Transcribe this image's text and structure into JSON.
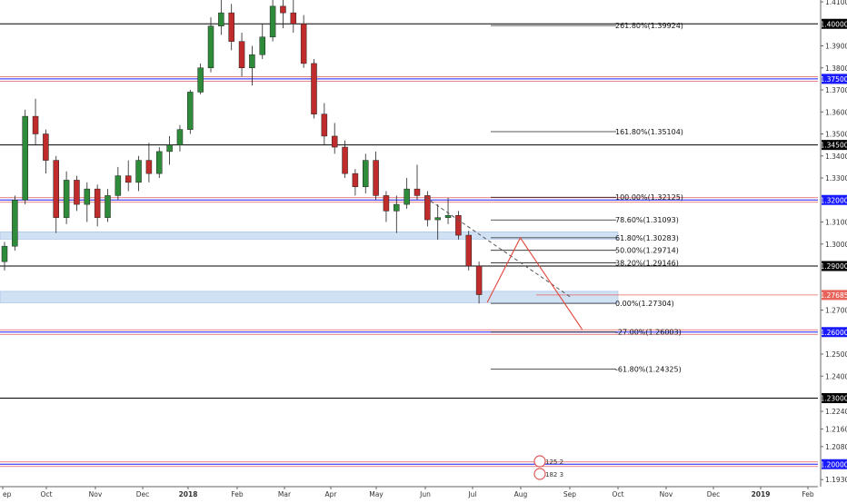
{
  "chart_data": {
    "type": "candlestick",
    "x_tick_labels": [
      "ep",
      "Oct",
      "Nov",
      "Dec",
      "2018",
      "Feb",
      "Mar",
      "Apr",
      "May",
      "Jun",
      "Jul",
      "Aug",
      "Sep",
      "Oct",
      "Nov",
      "Dec",
      "2019",
      "Feb"
    ],
    "y_tick_labels": [
      "1.41000",
      "1.39000",
      "1.38000",
      "1.37000",
      "1.36000",
      "1.35000",
      "1.34000",
      "1.33000",
      "1.32000",
      "1.31000",
      "1.30000",
      "1.29000",
      "1.28000",
      "1.27000",
      "1.26000",
      "1.25000",
      "1.24000",
      "1.23000",
      "1.22400",
      "1.21600",
      "1.20800",
      "1.20000",
      "1.19300"
    ],
    "ylim": [
      1.19,
      1.412
    ],
    "grid": false,
    "horizontal_levels": [
      {
        "label": "1.40000",
        "value": 1.4,
        "color": "#000000"
      },
      {
        "label": "1.37500",
        "value": 1.375,
        "color": "#1a1aff"
      },
      {
        "label": "1.34500",
        "value": 1.345,
        "color": "#000000"
      },
      {
        "label": "1.32000",
        "value": 1.32,
        "color": "#1a1aff"
      },
      {
        "label": "1.29000",
        "value": 1.29,
        "color": "#000000"
      },
      {
        "label": "1.26000",
        "value": 1.26,
        "color": "#1a1aff"
      },
      {
        "label": "1.23000",
        "value": 1.23,
        "color": "#000000"
      },
      {
        "label": "1.20000",
        "value": 1.2,
        "color": "#1a1aff"
      }
    ],
    "current_price": {
      "label": "1.27685",
      "value": 1.27685,
      "color": "#e8645a"
    },
    "fibonacci_levels": [
      {
        "label": "261.80%(1.39924)",
        "value": 1.39924
      },
      {
        "label": "161.80%(1.35104)",
        "value": 1.35104
      },
      {
        "label": "100.00%(1.32125)",
        "value": 1.32125
      },
      {
        "label": "78.60%(1.31093)",
        "value": 1.31093
      },
      {
        "label": "61.80%(1.30283)",
        "value": 1.30283
      },
      {
        "label": "50.00%(1.29714)",
        "value": 1.29714
      },
      {
        "label": "38.20%(1.29146)",
        "value": 1.29146
      },
      {
        "label": "0.00%(1.27304)",
        "value": 1.27304
      },
      {
        "label": "-27.00%(1.26003)",
        "value": 1.26003
      },
      {
        "label": "-61.80%(1.24325)",
        "value": 1.24325
      }
    ],
    "zones": [
      {
        "from": 1.3022,
        "to": 1.3055,
        "color": "#c9dcf2"
      },
      {
        "from": 1.2733,
        "to": 1.2785,
        "color": "#c9dcf2"
      }
    ],
    "projection_path": [
      {
        "week": 46.8,
        "price": 1.2735
      },
      {
        "week": 50.0,
        "price": 1.3028
      },
      {
        "week": 56.0,
        "price": 1.2612
      }
    ],
    "trend_line": [
      {
        "week": 40.8,
        "price": 1.3212
      },
      {
        "week": 55.0,
        "price": 1.2755
      }
    ],
    "event_markers": [
      "125 2",
      "182 3"
    ],
    "candles": [
      [
        1.292,
        1.301,
        1.288,
        1.299
      ],
      [
        1.299,
        1.322,
        1.297,
        1.32
      ],
      [
        1.32,
        1.361,
        1.318,
        1.358
      ],
      [
        1.358,
        1.366,
        1.345,
        1.35
      ],
      [
        1.35,
        1.352,
        1.332,
        1.338
      ],
      [
        1.338,
        1.34,
        1.305,
        1.312
      ],
      [
        1.312,
        1.333,
        1.309,
        1.329
      ],
      [
        1.329,
        1.331,
        1.315,
        1.318
      ],
      [
        1.318,
        1.328,
        1.31,
        1.325
      ],
      [
        1.325,
        1.327,
        1.308,
        1.312
      ],
      [
        1.312,
        1.325,
        1.31,
        1.322
      ],
      [
        1.322,
        1.335,
        1.32,
        1.331
      ],
      [
        1.331,
        1.338,
        1.324,
        1.328
      ],
      [
        1.328,
        1.34,
        1.324,
        1.338
      ],
      [
        1.338,
        1.346,
        1.328,
        1.332
      ],
      [
        1.332,
        1.344,
        1.33,
        1.342
      ],
      [
        1.342,
        1.349,
        1.336,
        1.345
      ],
      [
        1.345,
        1.354,
        1.342,
        1.352
      ],
      [
        1.352,
        1.37,
        1.35,
        1.369
      ],
      [
        1.369,
        1.382,
        1.368,
        1.38
      ],
      [
        1.38,
        1.403,
        1.378,
        1.399
      ],
      [
        1.399,
        1.412,
        1.395,
        1.405
      ],
      [
        1.405,
        1.409,
        1.388,
        1.392
      ],
      [
        1.392,
        1.396,
        1.376,
        1.38
      ],
      [
        1.38,
        1.39,
        1.372,
        1.386
      ],
      [
        1.386,
        1.4,
        1.384,
        1.394
      ],
      [
        1.394,
        1.415,
        1.392,
        1.408
      ],
      [
        1.408,
        1.416,
        1.398,
        1.405
      ],
      [
        1.405,
        1.412,
        1.396,
        1.4
      ],
      [
        1.4,
        1.404,
        1.38,
        1.382
      ],
      [
        1.382,
        1.384,
        1.357,
        1.359
      ],
      [
        1.359,
        1.364,
        1.345,
        1.349
      ],
      [
        1.349,
        1.355,
        1.341,
        1.344
      ],
      [
        1.344,
        1.347,
        1.33,
        1.332
      ],
      [
        1.332,
        1.334,
        1.322,
        1.326
      ],
      [
        1.326,
        1.341,
        1.323,
        1.338
      ],
      [
        1.338,
        1.342,
        1.32,
        1.322
      ],
      [
        1.322,
        1.324,
        1.31,
        1.315
      ],
      [
        1.315,
        1.322,
        1.305,
        1.318
      ],
      [
        1.318,
        1.33,
        1.316,
        1.325
      ],
      [
        1.325,
        1.336,
        1.32,
        1.322
      ],
      [
        1.322,
        1.324,
        1.308,
        1.311
      ],
      [
        1.311,
        1.318,
        1.302,
        1.312
      ],
      [
        1.312,
        1.321,
        1.309,
        1.313
      ],
      [
        1.313,
        1.315,
        1.302,
        1.304
      ],
      [
        1.304,
        1.306,
        1.288,
        1.29
      ],
      [
        1.29,
        1.292,
        1.273,
        1.277
      ]
    ]
  }
}
